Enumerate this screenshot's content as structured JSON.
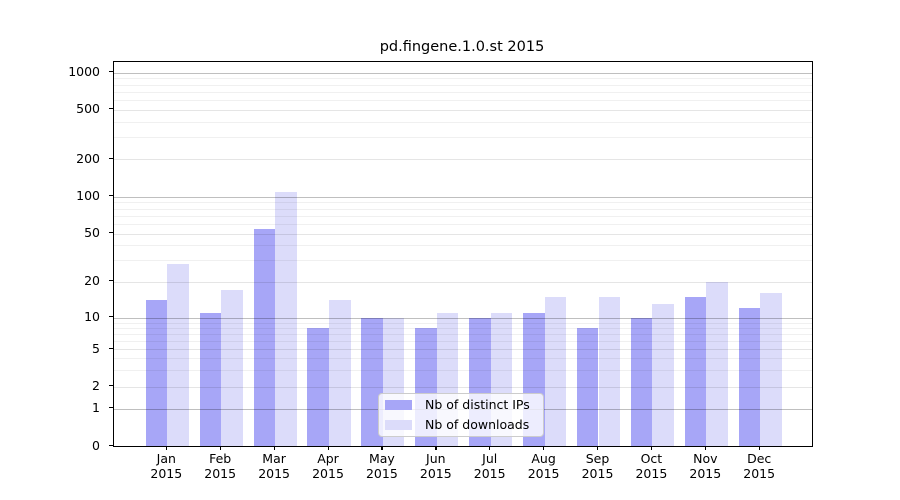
{
  "chart_data": {
    "type": "bar",
    "title": "pd.fingene.1.0.st 2015",
    "scale": "symlog",
    "categories": [
      "Jan",
      "Feb",
      "Mar",
      "Apr",
      "May",
      "Jun",
      "Jul",
      "Aug",
      "Sep",
      "Oct",
      "Nov",
      "Dec"
    ],
    "year_label": "2015",
    "series": [
      {
        "name": "Nb of distinct IPs",
        "color": "#a7a6f7",
        "values": [
          14,
          11,
          55,
          8,
          10,
          8,
          10,
          11,
          8,
          10,
          15,
          12
        ]
      },
      {
        "name": "Nb of downloads",
        "color": "#dcdcfa",
        "values": [
          28,
          17,
          110,
          14,
          10,
          11,
          11,
          15,
          15,
          13,
          20,
          16
        ]
      }
    ],
    "yticks": [
      0,
      1,
      2,
      5,
      10,
      20,
      50,
      100,
      200,
      500,
      1000
    ],
    "minor_gridlines": [
      3,
      4,
      6,
      7,
      8,
      9,
      30,
      40,
      60,
      70,
      80,
      90,
      300,
      400,
      600,
      700,
      800,
      900
    ],
    "ylim": [
      0,
      1200
    ],
    "xlabel": "",
    "ylabel": "",
    "grid": "both",
    "legend_position": "lower center"
  }
}
